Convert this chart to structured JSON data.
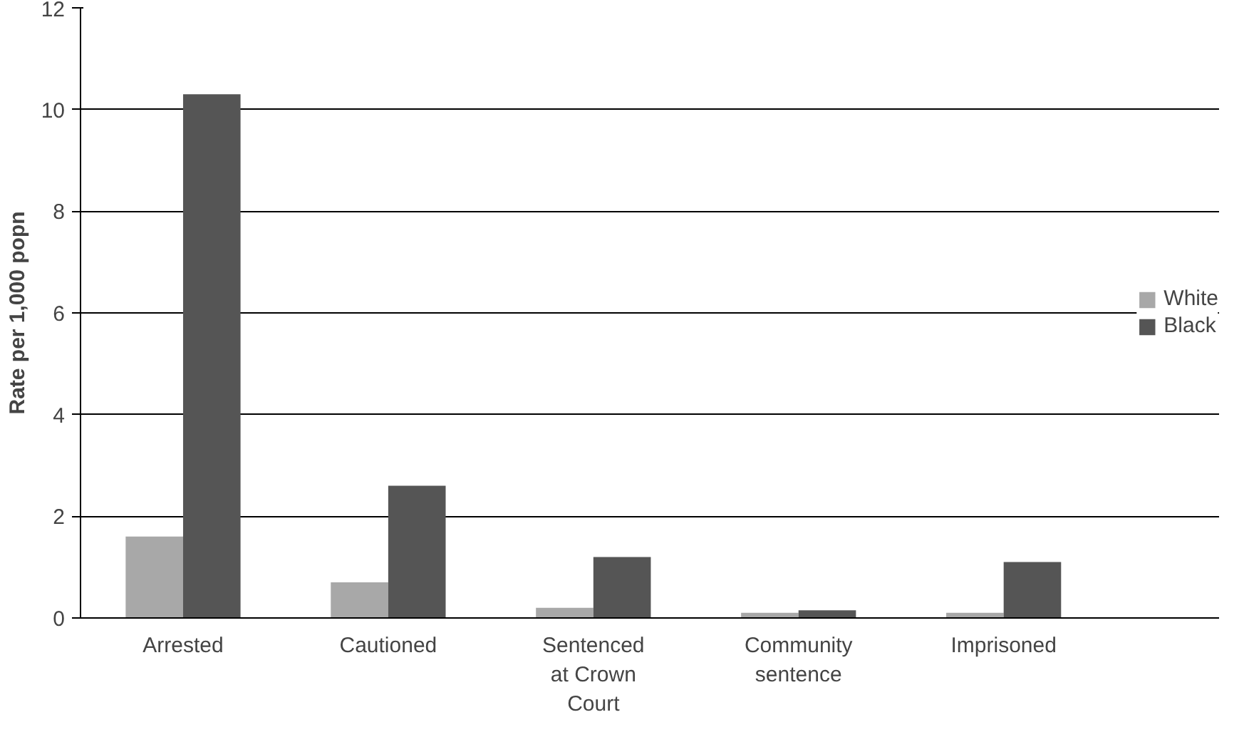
{
  "chart_data": {
    "type": "bar",
    "ylabel": "Rate per 1,000 popn",
    "categories": [
      "Arrested",
      "Cautioned",
      "Sentenced\nat Crown\nCourt",
      "Community\nsentence",
      "Imprisoned"
    ],
    "series": [
      {
        "name": "White",
        "color": "#a8a8a8",
        "values": [
          1.6,
          0.7,
          0.2,
          0.1,
          0.1
        ]
      },
      {
        "name": "Black",
        "color": "#555555",
        "values": [
          10.3,
          2.6,
          1.2,
          0.15,
          1.1
        ]
      }
    ],
    "ylim": [
      0,
      12
    ],
    "yticks": [
      0,
      2,
      4,
      6,
      8,
      10,
      12
    ],
    "grid": "y",
    "legend": "right"
  }
}
